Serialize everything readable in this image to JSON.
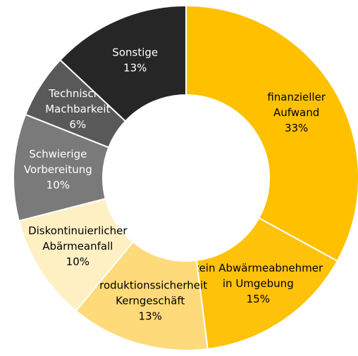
{
  "chart_data": {
    "type": "donut",
    "categories": [
      [
        "finanzieller",
        "Aufwand"
      ],
      [
        "kein Abwärmeabnehmer",
        "in Umgebung"
      ],
      [
        "Produktionssicherheit",
        "Kerngeschäft"
      ],
      [
        "Diskontinuierlicher",
        "Abärmeanfall"
      ],
      [
        "Schwierige",
        "Vorbereitung"
      ],
      [
        "Technische",
        "Machbarkeit"
      ],
      [
        "Sonstige"
      ]
    ],
    "values": [
      33,
      15,
      13,
      10,
      10,
      6,
      13
    ],
    "value_labels": [
      "33%",
      "15%",
      "13%",
      "10%",
      "10%",
      "6%",
      "13%"
    ],
    "colors": [
      "#FFC000",
      "#FFC20A",
      "#FFDA7A",
      "#FFF0C4",
      "#7A7A7A",
      "#595959",
      "#262626"
    ]
  }
}
